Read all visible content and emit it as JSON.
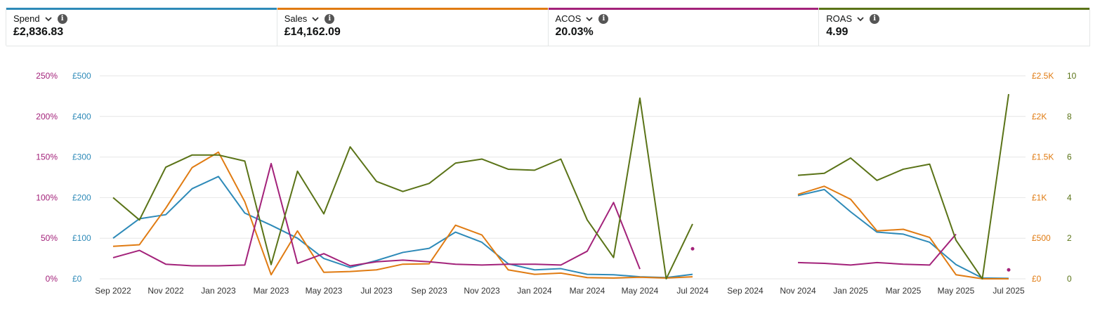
{
  "metrics": [
    {
      "label": "Spend",
      "value": "£2,836.83",
      "color": "#2e8ab8"
    },
    {
      "label": "Sales",
      "value": "£14,162.09",
      "color": "#e07b12"
    },
    {
      "label": "ACOS",
      "value": "20.03%",
      "color": "#a3227a"
    },
    {
      "label": "ROAS",
      "value": "4.99",
      "color": "#5a7317"
    }
  ],
  "chart_data": {
    "type": "line",
    "x": [
      "Sep 2022",
      "Oct 2022",
      "Nov 2022",
      "Dec 2022",
      "Jan 2023",
      "Feb 2023",
      "Mar 2023",
      "Apr 2023",
      "May 2023",
      "Jun 2023",
      "Jul 2023",
      "Aug 2023",
      "Sep 2023",
      "Oct 2023",
      "Nov 2023",
      "Dec 2023",
      "Jan 2024",
      "Feb 2024",
      "Mar 2024",
      "Apr 2024",
      "May 2024",
      "Jun 2024",
      "Jul 2024",
      "Aug 2024",
      "Sep 2024",
      "Oct 2024",
      "Nov 2024",
      "Dec 2024",
      "Jan 2025",
      "Feb 2025",
      "Mar 2025",
      "Apr 2025",
      "May 2025",
      "Jun 2025",
      "Jul 2025"
    ],
    "x_tick_labels": [
      "Sep 2022",
      "Nov 2022",
      "Jan 2023",
      "Mar 2023",
      "May 2023",
      "Jul 2023",
      "Sep 2023",
      "Nov 2023",
      "Jan 2024",
      "Mar 2024",
      "May 2024",
      "Jul 2024",
      "Sep 2024",
      "Nov 2024",
      "Jan 2025",
      "Mar 2025",
      "May 2025",
      "Jul 2025"
    ],
    "axes": {
      "acos": {
        "ticks": [
          "0%",
          "50%",
          "100%",
          "150%",
          "200%",
          "250%"
        ],
        "range": [
          0,
          250
        ],
        "color": "#a3227a"
      },
      "spend": {
        "ticks": [
          "£0",
          "£100",
          "£200",
          "£300",
          "£400",
          "£500"
        ],
        "range": [
          0,
          500
        ],
        "color": "#2e8ab8"
      },
      "sales": {
        "ticks": [
          "£0",
          "£500",
          "£1K",
          "£1.5K",
          "£2K",
          "£2.5K"
        ],
        "range": [
          0,
          2500
        ],
        "color": "#e07b12"
      },
      "roas": {
        "ticks": [
          "0",
          "2",
          "4",
          "6",
          "8",
          "10"
        ],
        "range": [
          0,
          10
        ],
        "color": "#5a7317"
      }
    },
    "grid": true,
    "series": [
      {
        "name": "Spend",
        "axis": "spend",
        "color": "#2e8ab8",
        "values": [
          100,
          148,
          158,
          222,
          252,
          162,
          132,
          100,
          50,
          28,
          45,
          65,
          75,
          115,
          90,
          37,
          22,
          25,
          11,
          10,
          5,
          3,
          11,
          null,
          null,
          null,
          205,
          220,
          165,
          115,
          110,
          90,
          35,
          2,
          1
        ]
      },
      {
        "name": "Sales",
        "axis": "sales",
        "color": "#e07b12",
        "values": [
          400,
          420,
          870,
          1370,
          1560,
          950,
          50,
          590,
          80,
          90,
          110,
          180,
          185,
          660,
          540,
          110,
          55,
          70,
          15,
          10,
          20,
          10,
          25,
          null,
          null,
          null,
          1040,
          1140,
          980,
          590,
          610,
          510,
          50,
          0,
          0
        ]
      },
      {
        "name": "ACOS",
        "axis": "acos",
        "color": "#a3227a",
        "values": [
          26,
          35,
          18,
          16,
          16,
          17,
          142,
          19,
          31,
          16,
          21,
          23,
          21,
          18,
          17,
          18,
          18,
          17,
          34,
          94,
          12,
          null,
          37,
          null,
          null,
          null,
          20,
          19,
          17,
          20,
          18,
          17,
          55,
          null,
          11
        ]
      },
      {
        "name": "ROAS",
        "axis": "roas",
        "color": "#5a7317",
        "values": [
          4,
          2.9,
          5.5,
          6.1,
          6.1,
          5.8,
          0.7,
          5.3,
          3.2,
          6.5,
          4.8,
          4.3,
          4.7,
          5.7,
          5.9,
          5.4,
          5.35,
          5.9,
          2.9,
          1.05,
          8.9,
          0,
          2.7,
          null,
          null,
          null,
          5.1,
          5.2,
          5.95,
          4.85,
          5.4,
          5.65,
          1.9,
          0,
          9.1
        ]
      }
    ]
  }
}
